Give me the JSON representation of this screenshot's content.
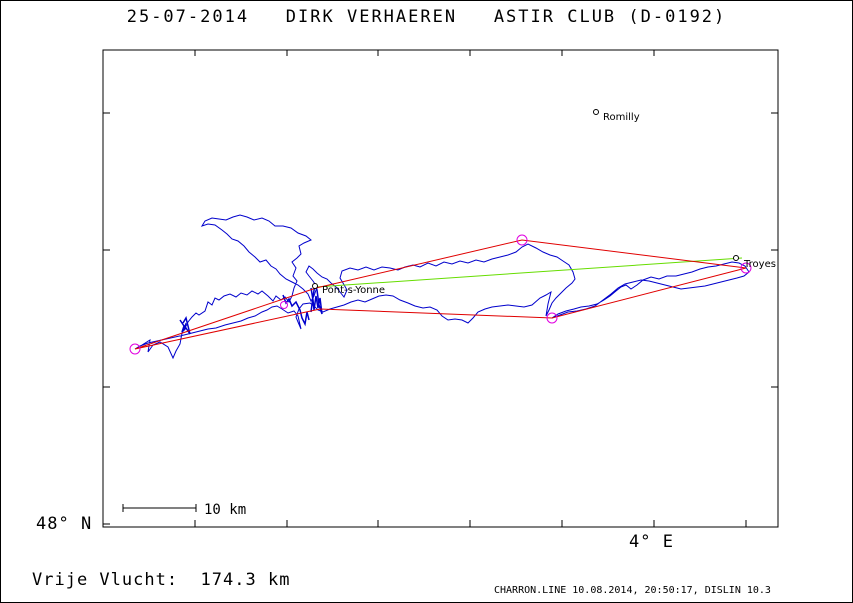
{
  "header": {
    "date": "25-07-2014",
    "pilot": "DIRK VERHAEREN",
    "glider": "ASTIR CLUB (D-0192)"
  },
  "axes": {
    "lat_label": "48° N",
    "lon_label": "4° E"
  },
  "scale_bar": {
    "label": "10 km"
  },
  "places": [
    {
      "name": "Romilly"
    },
    {
      "name": "Troyes"
    },
    {
      "name": "Pont-s-Yonne"
    }
  ],
  "free_flight": {
    "label": "Vrije Vlucht:",
    "value": "174.3 km"
  },
  "footer": {
    "text": "CHARRON.LINE 10.08.2014, 20:50:17, DISLIN 10.3"
  },
  "colors": {
    "track": "#0000cc",
    "triangle": "#e00000",
    "turnpoint": "#e000e0",
    "baseline": "#66dd00"
  }
}
